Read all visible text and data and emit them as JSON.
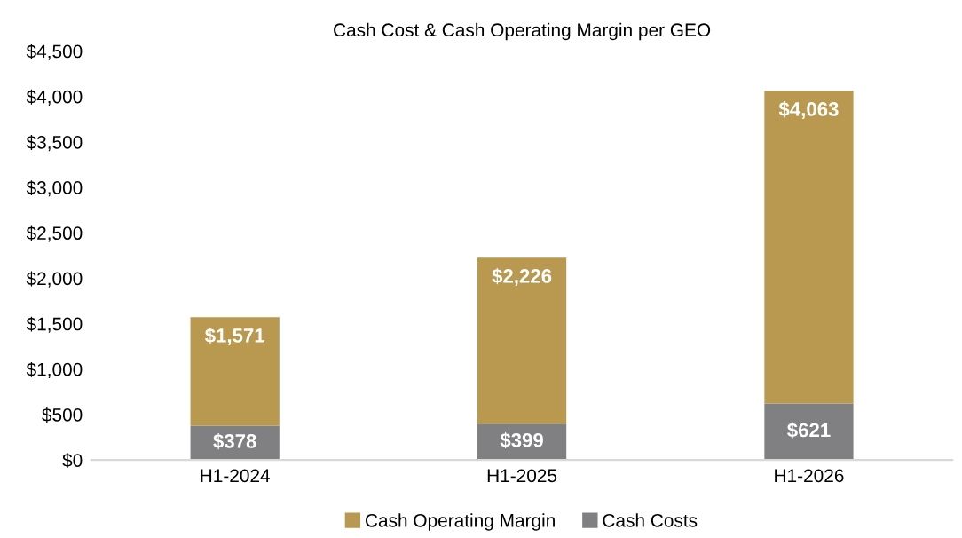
{
  "chart_data": {
    "type": "bar",
    "title": "Cash Cost & Cash Operating Margin per GEO",
    "categories": [
      "H1-2024",
      "H1-2025",
      "H1-2026"
    ],
    "stacked": true,
    "series": [
      {
        "name": "Cash Costs",
        "color": "#808083",
        "values": [
          378,
          399,
          621
        ],
        "value_labels": [
          "$378",
          "$399",
          "$621"
        ]
      },
      {
        "name": "Cash Operating Margin",
        "color": "#b9994f",
        "values": [
          1193,
          1827,
          3442
        ]
      }
    ],
    "totals": [
      "$1,571",
      "$2,226",
      "$4,063"
    ],
    "ylim": [
      0,
      4500
    ],
    "yticks": [
      {
        "value": 0,
        "label": "$0"
      },
      {
        "value": 500,
        "label": "$500"
      },
      {
        "value": 1000,
        "label": "$1,000"
      },
      {
        "value": 1500,
        "label": "$1,500"
      },
      {
        "value": 2000,
        "label": "$2,000"
      },
      {
        "value": 2500,
        "label": "$2,500"
      },
      {
        "value": 3000,
        "label": "$3,000"
      },
      {
        "value": 3500,
        "label": "$3,500"
      },
      {
        "value": 4000,
        "label": "$4,000"
      },
      {
        "value": 4500,
        "label": "$4,500"
      }
    ],
    "grid": false,
    "legend": "bottom"
  }
}
